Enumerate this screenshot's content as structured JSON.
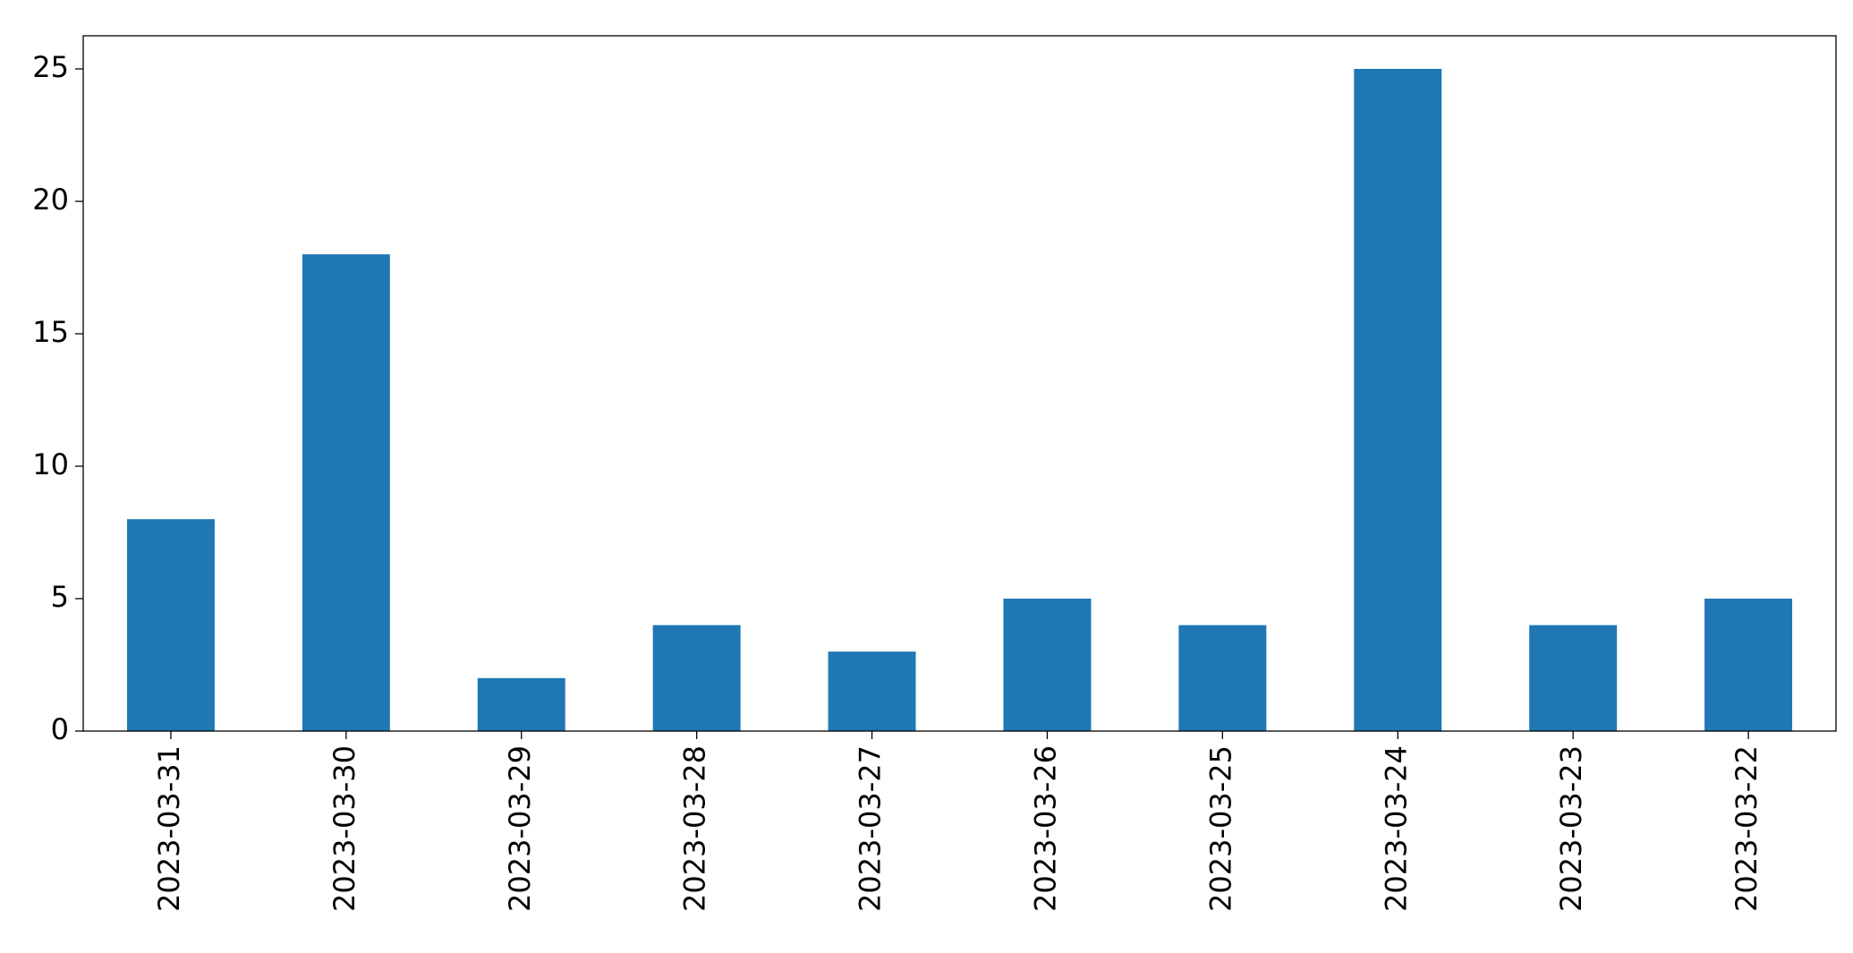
{
  "chart_data": {
    "type": "bar",
    "categories": [
      "2023-03-31",
      "2023-03-30",
      "2023-03-29",
      "2023-03-28",
      "2023-03-27",
      "2023-03-26",
      "2023-03-25",
      "2023-03-24",
      "2023-03-23",
      "2023-03-22"
    ],
    "values": [
      8,
      18,
      2,
      4,
      3,
      5,
      4,
      25,
      4,
      5
    ],
    "color": "#1f77b4",
    "ylim": [
      0,
      26.25
    ],
    "yticks": [
      0,
      5,
      10,
      15,
      20,
      25
    ],
    "grid": false
  }
}
